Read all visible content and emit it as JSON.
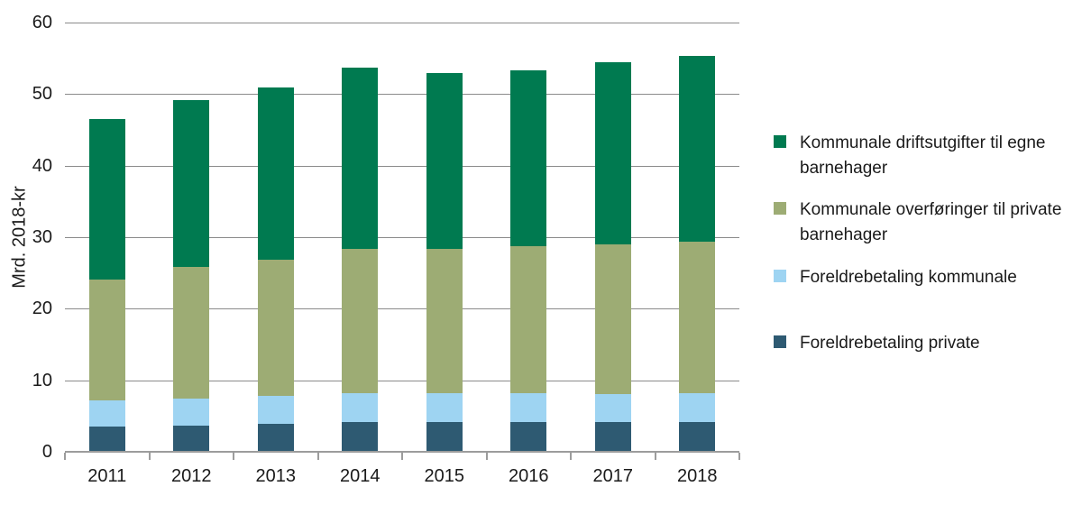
{
  "chart_data": {
    "type": "bar",
    "stacked": true,
    "title": "",
    "xlabel": "",
    "ylabel": "Mrd. 2018-kr",
    "ylim": [
      0,
      60
    ],
    "yticks": [
      0,
      10,
      20,
      30,
      40,
      50,
      60
    ],
    "grid": true,
    "legend_position": "right",
    "categories": [
      "2011",
      "2012",
      "2013",
      "2014",
      "2015",
      "2016",
      "2017",
      "2018"
    ],
    "series": [
      {
        "name": "Foreldrebetaling private",
        "color": "#2e5a72",
        "values": [
          3.5,
          3.6,
          3.9,
          4.1,
          4.2,
          4.2,
          4.1,
          4.2
        ]
      },
      {
        "name": "Foreldrebetaling kommunale",
        "color": "#9ed4f2",
        "values": [
          3.7,
          3.9,
          3.9,
          4.1,
          4.0,
          4.0,
          4.0,
          4.0
        ]
      },
      {
        "name": "Kommunale overføringer til private barnehager",
        "color": "#9dac74",
        "values": [
          16.9,
          18.3,
          19.1,
          20.2,
          20.2,
          20.5,
          20.9,
          21.2
        ]
      },
      {
        "name": "Kommunale driftsutgifter til egne barnehager",
        "color": "#007a50",
        "values": [
          22.4,
          23.4,
          24.0,
          25.3,
          24.6,
          24.6,
          25.4,
          26.0
        ]
      }
    ],
    "totals": [
      46.5,
      49.2,
      50.9,
      53.7,
      53.0,
      53.3,
      54.4,
      55.4
    ]
  },
  "legend": {
    "items": [
      {
        "label": "Kommunale driftsutgifter til egne barnehager",
        "color": "#007a50"
      },
      {
        "label": "Kommunale overføringer til private barnehager",
        "color": "#9dac74"
      },
      {
        "label": "Foreldrebetaling kommunale",
        "color": "#9ed4f2"
      },
      {
        "label": "Foreldrebetaling private",
        "color": "#2e5a72"
      }
    ]
  }
}
